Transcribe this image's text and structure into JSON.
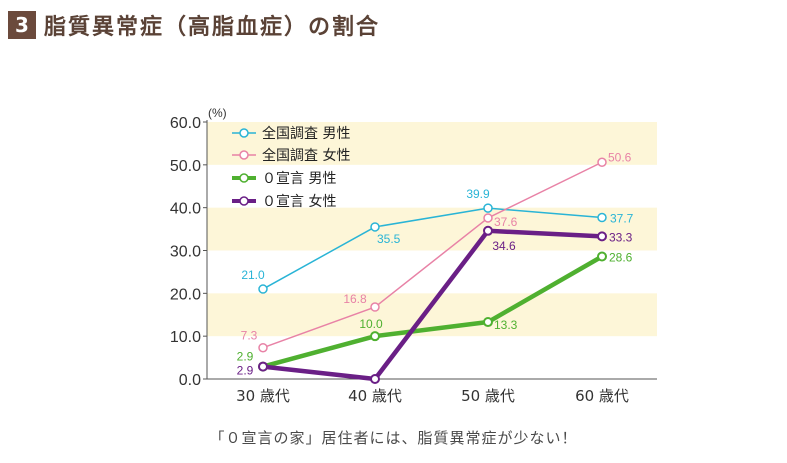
{
  "header": {
    "number": "3",
    "title": "脂質異常症（高脂血症）の割合"
  },
  "caption": "「０宣言の家」居住者には、脂質異常症が少ない！",
  "chart_data": {
    "type": "line",
    "title": "脂質異常症（高脂血症）の割合",
    "y_unit": "(%)",
    "categories": [
      "30 歳代",
      "40 歳代",
      "50 歳代",
      "60 歳代"
    ],
    "ylim": [
      0,
      60
    ],
    "yticks": [
      "0.0",
      "10.0",
      "20.0",
      "30.0",
      "40.0",
      "50.0",
      "60.0"
    ],
    "bands": [
      [
        10,
        20
      ],
      [
        30,
        40
      ],
      [
        50,
        60
      ]
    ],
    "band_color": "#fdf6d8",
    "legend_position": "top-left",
    "series": [
      {
        "name": "全国調査 男性",
        "color": "#29b4d6",
        "width": 1.5,
        "values": [
          21.0,
          35.5,
          39.9,
          37.7
        ],
        "labels": [
          "21.0",
          "35.5",
          "39.9",
          "37.7"
        ]
      },
      {
        "name": "全国調査 女性",
        "color": "#e882a6",
        "width": 1.5,
        "values": [
          7.3,
          16.8,
          37.6,
          50.6
        ],
        "labels": [
          "7.3",
          "16.8",
          "37.6",
          "50.6"
        ]
      },
      {
        "name": "０宣言 男性",
        "color": "#4fb030",
        "width": 4.5,
        "values": [
          2.9,
          10.0,
          13.3,
          28.6
        ],
        "labels": [
          "2.9",
          "10.0",
          "13.3",
          "28.6"
        ]
      },
      {
        "name": "０宣言 女性",
        "color": "#6a1f86",
        "width": 4.5,
        "values": [
          2.9,
          0.0,
          34.6,
          33.3
        ],
        "labels": [
          "2.9",
          "",
          "34.6",
          "33.3"
        ]
      }
    ]
  }
}
